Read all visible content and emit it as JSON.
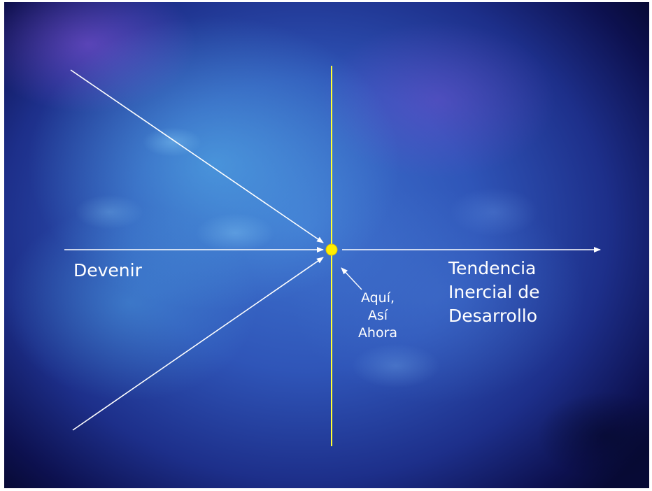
{
  "slide": {
    "labels": {
      "left": "Devenir",
      "right": [
        "Tendencia",
        "Inercial de",
        "Desarrollo"
      ],
      "center": [
        "Aquí,",
        "Así",
        "Ahora"
      ]
    }
  },
  "colors": {
    "arrow": "#ffffff",
    "vertical_line": "#ffff33",
    "center_dot": "#ffee00",
    "background_center": "#3f74cf",
    "background_edge": "#070a35"
  }
}
